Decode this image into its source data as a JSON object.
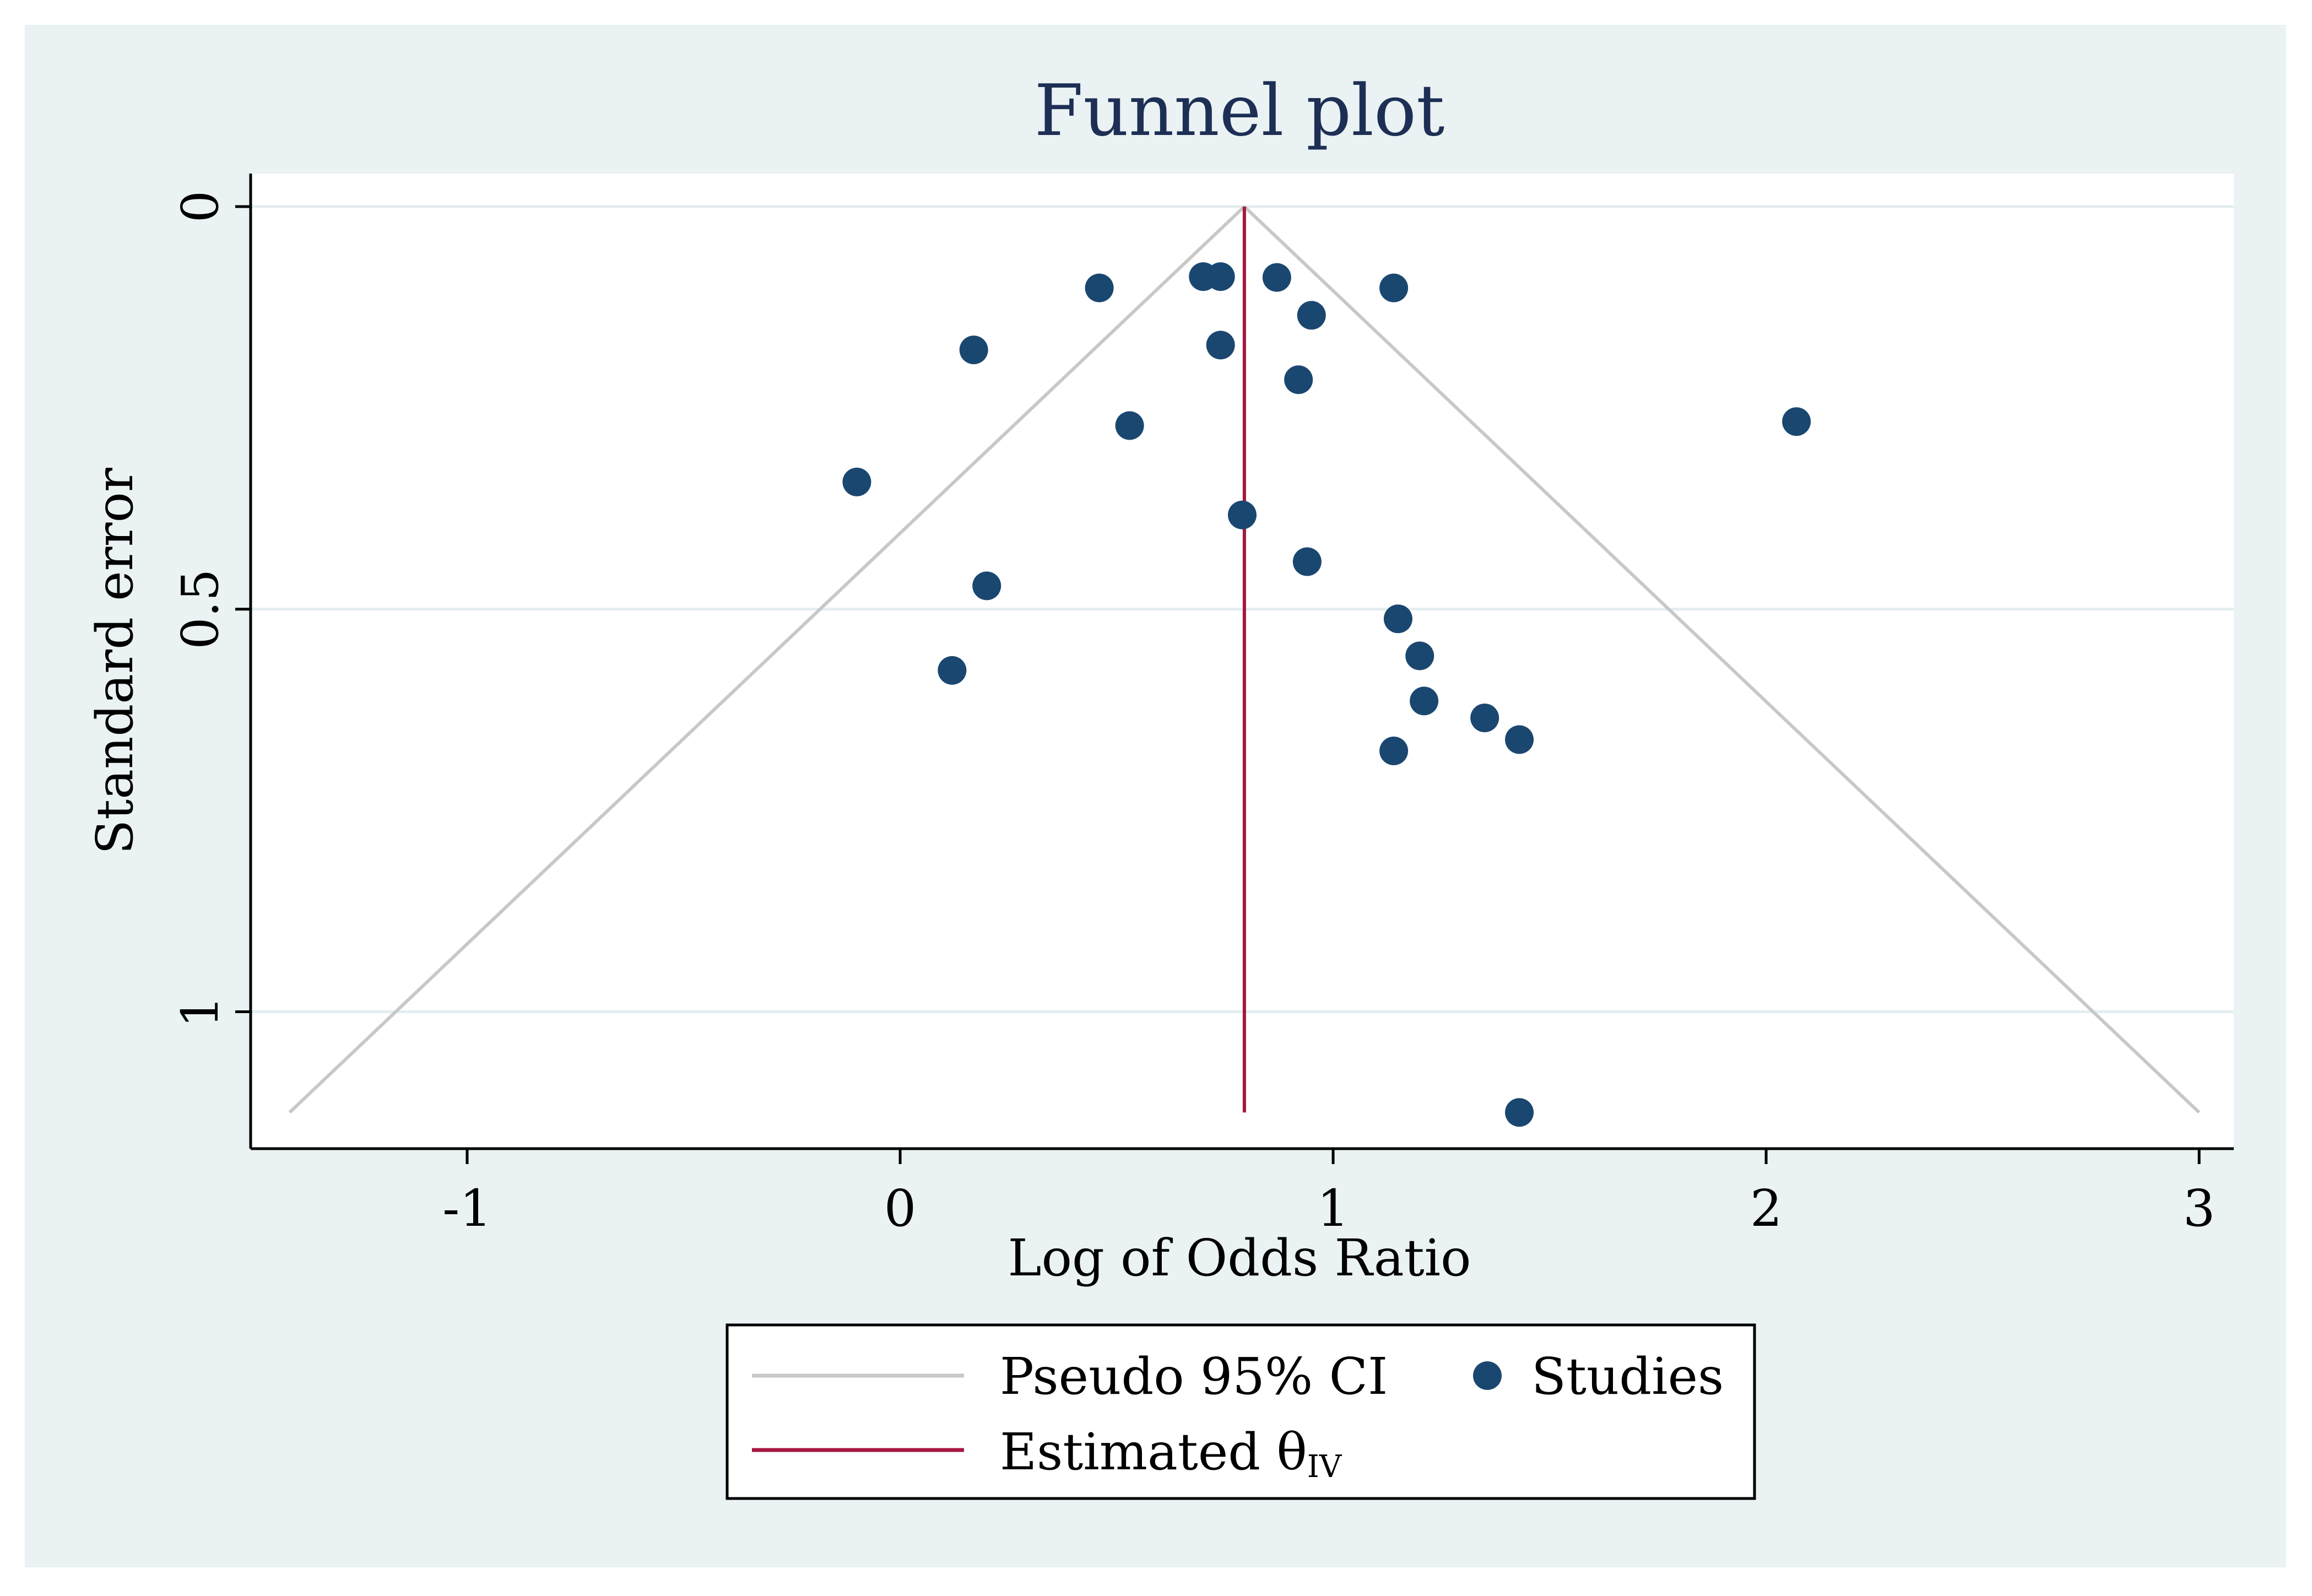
{
  "chart_data": {
    "type": "scatter",
    "title": "Funnel plot",
    "xlabel": "Log of Odds Ratio",
    "ylabel": "Standard error",
    "xlim": [
      -1.5,
      3.08
    ],
    "ylim": [
      0,
      1.17
    ],
    "y_reversed": true,
    "x_ticks": [
      -1,
      0,
      1,
      2,
      3
    ],
    "x_tick_labels": [
      "-1",
      "0",
      "1",
      "2",
      "3"
    ],
    "y_ticks": [
      0,
      0.5,
      1
    ],
    "y_tick_labels": [
      "0",
      "0.5",
      "1"
    ],
    "grid": "horizontal",
    "estimate": 0.795,
    "ci_apex": [
      0.795,
      0
    ],
    "ci_lower_end": [
      -1.41,
      1.125
    ],
    "ci_upper_end": [
      3.0,
      1.125
    ],
    "series": [
      {
        "name": "Studies",
        "x": [
          0.46,
          0.7,
          0.74,
          0.87,
          1.14,
          0.95,
          0.17,
          0.74,
          0.92,
          2.07,
          0.53,
          -0.1,
          0.79,
          0.94,
          0.2,
          1.15,
          1.2,
          0.12,
          1.21,
          1.35,
          1.43,
          1.14,
          1.43
        ],
        "y": [
          0.101,
          0.087,
          0.087,
          0.088,
          0.101,
          0.135,
          0.178,
          0.172,
          0.215,
          0.267,
          0.272,
          0.342,
          0.383,
          0.441,
          0.471,
          0.512,
          0.558,
          0.576,
          0.614,
          0.635,
          0.662,
          0.676,
          1.125
        ]
      }
    ],
    "legend": {
      "position": "bottom-center",
      "entries": [
        {
          "label": "Pseudo 95% CI",
          "color": "#c8c8c8",
          "kind": "line"
        },
        {
          "label": "Studies",
          "color": "#1a4770",
          "kind": "marker"
        },
        {
          "label": "Estimated θ",
          "subscript": "IV",
          "color": "#a6163f",
          "kind": "line"
        }
      ]
    },
    "colors": {
      "points": "#1a4770",
      "estimate": "#a6163f",
      "ci": "#c8c8c8",
      "grid": "#e3eef0",
      "title": "#1e2f55",
      "background": "#eaf2f3"
    }
  }
}
